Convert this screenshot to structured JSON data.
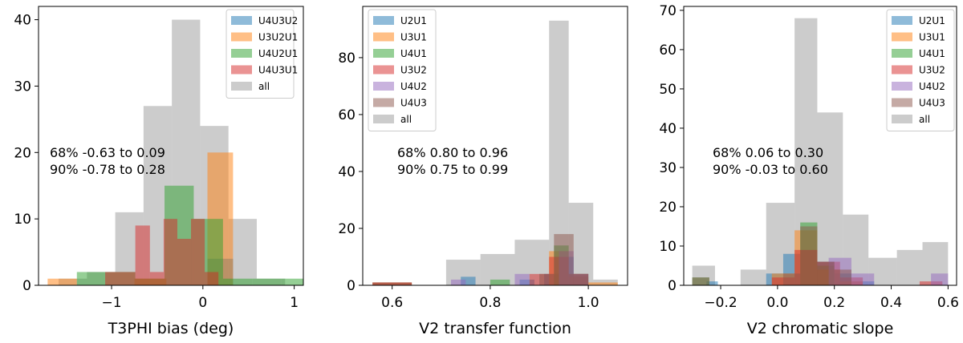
{
  "chart_data": [
    {
      "type": "histogram",
      "xlabel": "T3PHI bias (deg)",
      "ylabel": "",
      "xlim": [
        -1.8,
        1.1
      ],
      "ylim": [
        0,
        42
      ],
      "xticks": [
        -1,
        0,
        1
      ],
      "xtick_labels": [
        "−1",
        "0",
        "1"
      ],
      "yticks": [
        0,
        10,
        20,
        30,
        40
      ],
      "grid": false,
      "legend_position": "top-right",
      "annotations": [
        "68% -0.63 to 0.09",
        "90% -0.78 to 0.28"
      ],
      "series": [
        {
          "name": "U4U3U2",
          "color": "#1f77b4",
          "bins": [
            {
              "x0": 0.05,
              "x1": 0.33,
              "count": 4
            }
          ]
        },
        {
          "name": "U3U2U1",
          "color": "#ff7f0e",
          "bins": [
            {
              "x0": -1.7,
              "x1": -1.38,
              "count": 1
            },
            {
              "x0": -0.75,
              "x1": -0.4,
              "count": 1
            },
            {
              "x0": 0.05,
              "x1": 0.33,
              "count": 20
            }
          ]
        },
        {
          "name": "U4U2U1",
          "color": "#2ca02c",
          "bins": [
            {
              "x0": -1.38,
              "x1": -1.07,
              "count": 2
            },
            {
              "x0": -1.07,
              "x1": -0.74,
              "count": 2
            },
            {
              "x0": -0.74,
              "x1": -0.42,
              "count": 1
            },
            {
              "x0": -0.42,
              "x1": -0.1,
              "count": 15
            },
            {
              "x0": -0.1,
              "x1": 0.22,
              "count": 10
            },
            {
              "x0": 0.22,
              "x1": 0.54,
              "count": 1
            },
            {
              "x0": 0.54,
              "x1": 0.86,
              "count": 1
            },
            {
              "x0": 0.86,
              "x1": 1.18,
              "count": 1
            }
          ]
        },
        {
          "name": "U4U3U1",
          "color": "#d62728",
          "bins": [
            {
              "x0": -1.07,
              "x1": -0.74,
              "count": 2
            },
            {
              "x0": -0.74,
              "x1": -0.58,
              "count": 9
            },
            {
              "x0": -0.58,
              "x1": -0.43,
              "count": 2
            },
            {
              "x0": -0.43,
              "x1": -0.28,
              "count": 10
            },
            {
              "x0": -0.28,
              "x1": -0.13,
              "count": 7
            },
            {
              "x0": -0.13,
              "x1": 0.02,
              "count": 10
            },
            {
              "x0": 0.02,
              "x1": 0.17,
              "count": 2
            }
          ]
        },
        {
          "name": "all",
          "color": "#808080",
          "bins": [
            {
              "x0": -1.58,
              "x1": -1.27,
              "count": 1
            },
            {
              "x0": -1.27,
              "x1": -0.96,
              "count": 2
            },
            {
              "x0": -0.96,
              "x1": -0.65,
              "count": 11
            },
            {
              "x0": -0.65,
              "x1": -0.34,
              "count": 27
            },
            {
              "x0": -0.34,
              "x1": -0.03,
              "count": 40
            },
            {
              "x0": -0.03,
              "x1": 0.28,
              "count": 24
            },
            {
              "x0": 0.28,
              "x1": 0.59,
              "count": 10
            },
            {
              "x0": 0.59,
              "x1": 0.9,
              "count": 1
            }
          ]
        }
      ]
    },
    {
      "type": "histogram",
      "xlabel": "V2 transfer function",
      "ylabel": "",
      "xlim": [
        0.54,
        1.08
      ],
      "ylim": [
        0,
        98
      ],
      "xticks": [
        0.6,
        0.8,
        1.0
      ],
      "xtick_labels": [
        "0.6",
        "0.8",
        "1.0"
      ],
      "yticks": [
        0,
        20,
        40,
        60,
        80
      ],
      "grid": false,
      "legend_position": "top-left",
      "annotations": [
        "68% 0.80 to 0.96",
        "90% 0.75 to 0.99"
      ],
      "series": [
        {
          "name": "U2U1",
          "color": "#1f77b4",
          "bins": [
            {
              "x0": 0.74,
              "x1": 0.77,
              "count": 3
            },
            {
              "x0": 0.86,
              "x1": 0.89,
              "count": 2
            },
            {
              "x0": 0.91,
              "x1": 0.94,
              "count": 4
            },
            {
              "x0": 0.94,
              "x1": 0.97,
              "count": 10
            },
            {
              "x0": 0.97,
              "x1": 1.0,
              "count": 3
            }
          ]
        },
        {
          "name": "U3U1",
          "color": "#ff7f0e",
          "bins": [
            {
              "x0": 0.56,
              "x1": 0.64,
              "count": 1
            },
            {
              "x0": 0.92,
              "x1": 0.96,
              "count": 12
            },
            {
              "x0": 0.96,
              "x1": 1.0,
              "count": 3
            },
            {
              "x0": 1.0,
              "x1": 1.06,
              "count": 1
            }
          ]
        },
        {
          "name": "U4U1",
          "color": "#2ca02c",
          "bins": [
            {
              "x0": 0.8,
              "x1": 0.84,
              "count": 2
            },
            {
              "x0": 0.93,
              "x1": 0.96,
              "count": 14
            },
            {
              "x0": 0.96,
              "x1": 1.0,
              "count": 4
            }
          ]
        },
        {
          "name": "U3U2",
          "color": "#d62728",
          "bins": [
            {
              "x0": 0.56,
              "x1": 0.64,
              "count": 1
            },
            {
              "x0": 0.88,
              "x1": 0.92,
              "count": 4
            },
            {
              "x0": 0.92,
              "x1": 0.96,
              "count": 10
            },
            {
              "x0": 0.96,
              "x1": 1.0,
              "count": 4
            }
          ]
        },
        {
          "name": "U4U2",
          "color": "#9467bd",
          "bins": [
            {
              "x0": 0.72,
              "x1": 0.75,
              "count": 2
            },
            {
              "x0": 0.85,
              "x1": 0.88,
              "count": 4
            },
            {
              "x0": 0.94,
              "x1": 0.97,
              "count": 12
            },
            {
              "x0": 0.97,
              "x1": 1.0,
              "count": 4
            }
          ]
        },
        {
          "name": "U4U3",
          "color": "#8c564b",
          "bins": [
            {
              "x0": 0.56,
              "x1": 0.64,
              "count": 1
            },
            {
              "x0": 0.9,
              "x1": 0.93,
              "count": 4
            },
            {
              "x0": 0.93,
              "x1": 0.97,
              "count": 18
            },
            {
              "x0": 0.97,
              "x1": 1.0,
              "count": 4
            }
          ]
        },
        {
          "name": "all",
          "color": "#808080",
          "bins": [
            {
              "x0": 0.56,
              "x1": 0.64,
              "count": 1
            },
            {
              "x0": 0.71,
              "x1": 0.78,
              "count": 9
            },
            {
              "x0": 0.78,
              "x1": 0.85,
              "count": 11
            },
            {
              "x0": 0.85,
              "x1": 0.92,
              "count": 16
            },
            {
              "x0": 0.92,
              "x1": 0.96,
              "count": 93
            },
            {
              "x0": 0.96,
              "x1": 1.01,
              "count": 29
            },
            {
              "x0": 1.01,
              "x1": 1.06,
              "count": 2
            }
          ]
        }
      ]
    },
    {
      "type": "histogram",
      "xlabel": "V2 chromatic slope",
      "ylabel": "",
      "xlim": [
        -0.33,
        0.63
      ],
      "ylim": [
        0,
        71
      ],
      "xticks": [
        -0.2,
        0.0,
        0.2,
        0.4,
        0.6
      ],
      "xtick_labels": [
        "−0.2",
        "0.0",
        "0.2",
        "0.4",
        "0.6"
      ],
      "yticks": [
        0,
        10,
        20,
        30,
        40,
        50,
        60,
        70
      ],
      "grid": false,
      "legend_position": "top-right",
      "annotations": [
        "68% 0.06 to 0.30",
        "90% -0.03 to 0.60"
      ],
      "series": [
        {
          "name": "U2U1",
          "color": "#1f77b4",
          "bins": [
            {
              "x0": -0.25,
              "x1": -0.21,
              "count": 1
            },
            {
              "x0": -0.04,
              "x1": 0.02,
              "count": 3
            },
            {
              "x0": 0.02,
              "x1": 0.08,
              "count": 8
            },
            {
              "x0": 0.08,
              "x1": 0.14,
              "count": 9
            },
            {
              "x0": 0.14,
              "x1": 0.2,
              "count": 6
            },
            {
              "x0": 0.2,
              "x1": 0.26,
              "count": 3
            },
            {
              "x0": 0.26,
              "x1": 0.34,
              "count": 1
            }
          ]
        },
        {
          "name": "U3U1",
          "color": "#ff7f0e",
          "bins": [
            {
              "x0": -0.02,
              "x1": 0.06,
              "count": 3
            },
            {
              "x0": 0.06,
              "x1": 0.14,
              "count": 14
            },
            {
              "x0": 0.14,
              "x1": 0.22,
              "count": 4
            },
            {
              "x0": 0.22,
              "x1": 0.3,
              "count": 1
            }
          ]
        },
        {
          "name": "U4U1",
          "color": "#2ca02c",
          "bins": [
            {
              "x0": -0.3,
              "x1": -0.24,
              "count": 2
            },
            {
              "x0": 0.08,
              "x1": 0.14,
              "count": 16
            },
            {
              "x0": 0.14,
              "x1": 0.2,
              "count": 5
            }
          ]
        },
        {
          "name": "U3U2",
          "color": "#d62728",
          "bins": [
            {
              "x0": -0.02,
              "x1": 0.06,
              "count": 2
            },
            {
              "x0": 0.06,
              "x1": 0.14,
              "count": 9
            },
            {
              "x0": 0.14,
              "x1": 0.22,
              "count": 6
            },
            {
              "x0": 0.22,
              "x1": 0.3,
              "count": 2
            },
            {
              "x0": 0.5,
              "x1": 0.58,
              "count": 1
            }
          ]
        },
        {
          "name": "U4U2",
          "color": "#9467bd",
          "bins": [
            {
              "x0": 0.18,
              "x1": 0.26,
              "count": 7
            },
            {
              "x0": 0.26,
              "x1": 0.34,
              "count": 3
            },
            {
              "x0": 0.54,
              "x1": 0.6,
              "count": 3
            }
          ]
        },
        {
          "name": "U4U3",
          "color": "#8c564b",
          "bins": [
            {
              "x0": -0.3,
              "x1": -0.24,
              "count": 2
            },
            {
              "x0": 0.02,
              "x1": 0.08,
              "count": 3
            },
            {
              "x0": 0.08,
              "x1": 0.14,
              "count": 15
            },
            {
              "x0": 0.14,
              "x1": 0.2,
              "count": 6
            },
            {
              "x0": 0.2,
              "x1": 0.26,
              "count": 4
            }
          ]
        },
        {
          "name": "all",
          "color": "#808080",
          "bins": [
            {
              "x0": -0.3,
              "x1": -0.22,
              "count": 5
            },
            {
              "x0": -0.13,
              "x1": -0.04,
              "count": 4
            },
            {
              "x0": -0.04,
              "x1": 0.06,
              "count": 21
            },
            {
              "x0": 0.06,
              "x1": 0.14,
              "count": 68
            },
            {
              "x0": 0.14,
              "x1": 0.23,
              "count": 44
            },
            {
              "x0": 0.23,
              "x1": 0.32,
              "count": 18
            },
            {
              "x0": 0.32,
              "x1": 0.42,
              "count": 7
            },
            {
              "x0": 0.42,
              "x1": 0.51,
              "count": 9
            },
            {
              "x0": 0.51,
              "x1": 0.6,
              "count": 11
            }
          ]
        }
      ]
    }
  ]
}
